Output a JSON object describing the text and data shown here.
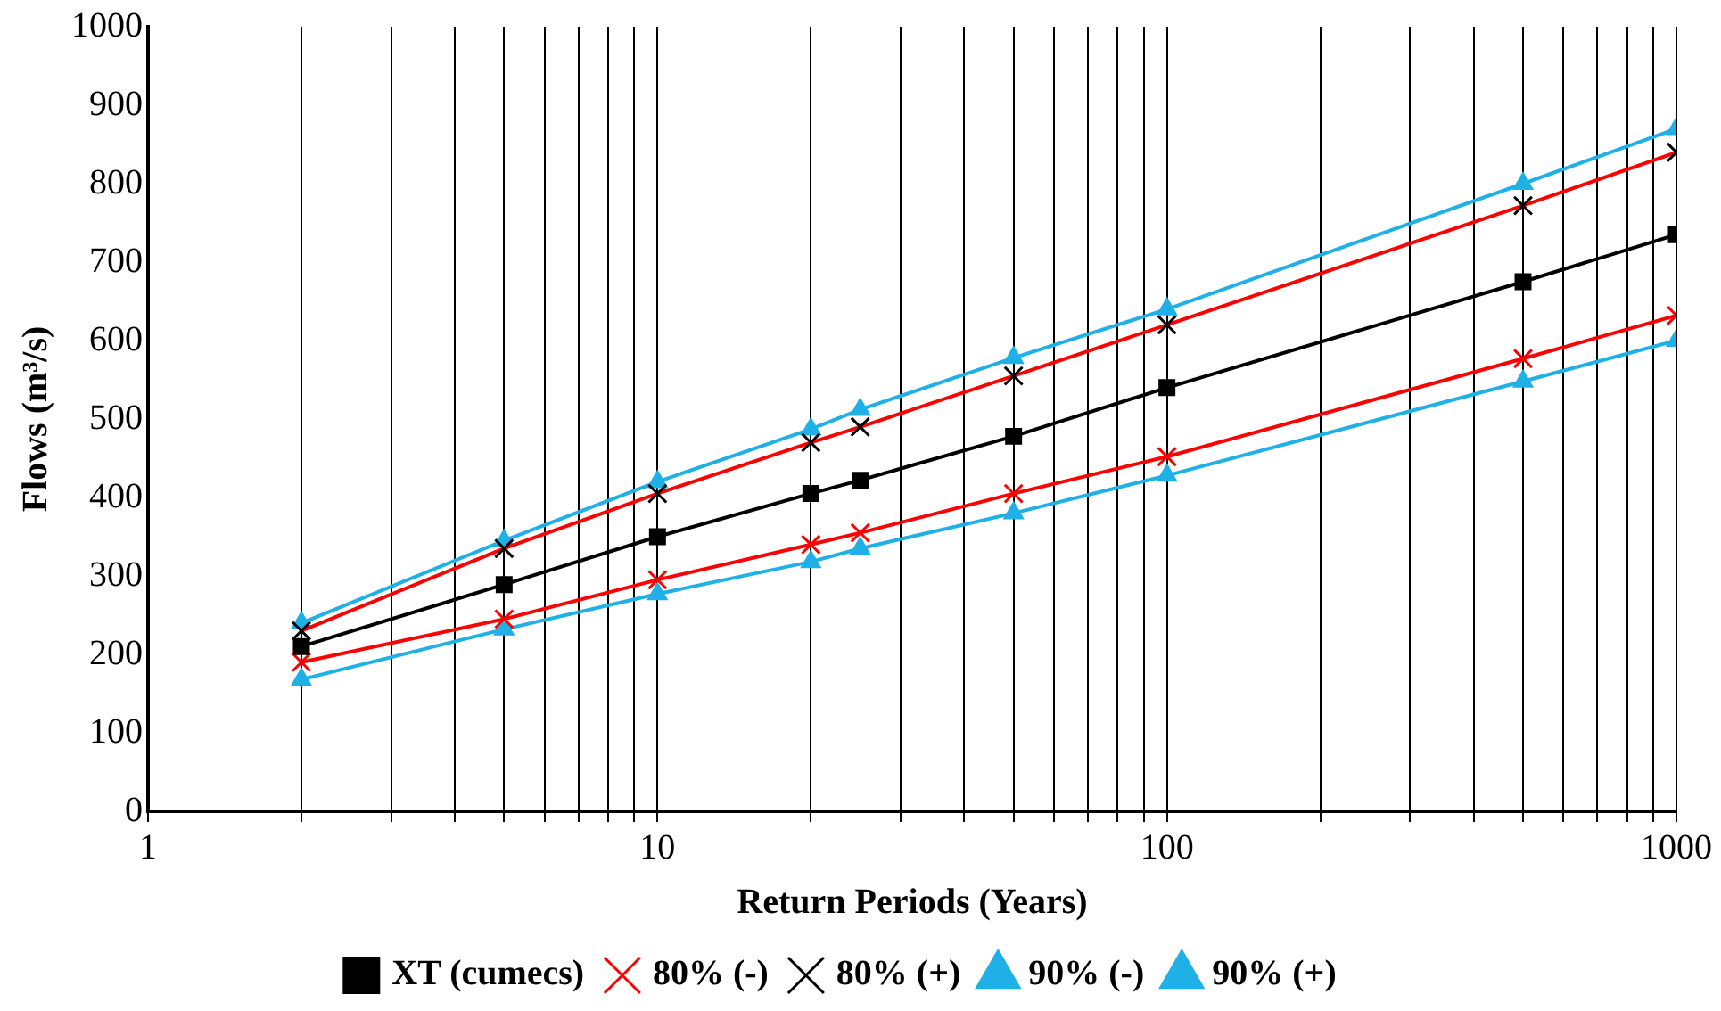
{
  "chart_data": {
    "type": "line",
    "xlabel": "Return Periods (Years)",
    "ylabel": "Flows (m³/s)",
    "x": [
      2,
      5,
      10,
      20,
      25,
      50,
      100,
      500,
      1000
    ],
    "series": [
      {
        "name": "XT (cumecs)",
        "color": "#000000",
        "marker": "square",
        "values": [
          210,
          289,
          350,
          405,
          422,
          478,
          540,
          675,
          735
        ]
      },
      {
        "name": "80% (-)",
        "color": "#ff0000",
        "marker": "cross",
        "values": [
          190,
          245,
          295,
          340,
          355,
          405,
          452,
          577,
          632
        ]
      },
      {
        "name": "80% (+)",
        "color": "#ff0000",
        "colors": [
          "#000000",
          "#000000",
          "#000000",
          "#000000",
          "#000000",
          "#000000",
          "#000000",
          "#000000",
          "#000000"
        ],
        "marker": "cross",
        "values": [
          230,
          335,
          405,
          470,
          490,
          555,
          620,
          772,
          840
        ]
      },
      {
        "name": "90% (-)",
        "color": "#1fb0e8",
        "marker": "triangle",
        "values": [
          168,
          232,
          277,
          318,
          335,
          380,
          428,
          548,
          600
        ]
      },
      {
        "name": "90% (+)",
        "color": "#1fb0e8",
        "marker": "triangle",
        "values": [
          240,
          345,
          420,
          487,
          512,
          578,
          640,
          800,
          870
        ]
      }
    ],
    "log": "x",
    "xlim": [
      1,
      1000
    ],
    "xticks": [
      1,
      {
        "value": 2,
        "label": null
      },
      {
        "value": 3,
        "label": null
      },
      {
        "value": 4,
        "label": null
      },
      {
        "value": 5,
        "label": null
      },
      {
        "value": 6,
        "label": null
      },
      {
        "value": 7,
        "label": null
      },
      {
        "value": 8,
        "label": null
      },
      {
        "value": 9,
        "label": null
      },
      10,
      {
        "value": 20,
        "label": null
      },
      {
        "value": 30,
        "label": null
      },
      {
        "value": 40,
        "label": null
      },
      {
        "value": 50,
        "label": null
      },
      {
        "value": 60,
        "label": null
      },
      {
        "value": 70,
        "label": null
      },
      {
        "value": 80,
        "label": null
      },
      {
        "value": 90,
        "label": null
      },
      100,
      {
        "value": 200,
        "label": null
      },
      {
        "value": 300,
        "label": null
      },
      {
        "value": 400,
        "label": null
      },
      {
        "value": 500,
        "label": null
      },
      {
        "value": 600,
        "label": null
      },
      {
        "value": 700,
        "label": null
      },
      {
        "value": 800,
        "label": null
      },
      {
        "value": 900,
        "label": null
      },
      1000
    ],
    "ylim": [
      0,
      1000
    ],
    "yticks": [
      0,
      100,
      200,
      300,
      400,
      500,
      600,
      700,
      800,
      900,
      1000
    ],
    "grid": "x",
    "legend": "bottom",
    "line_style": "solid"
  }
}
